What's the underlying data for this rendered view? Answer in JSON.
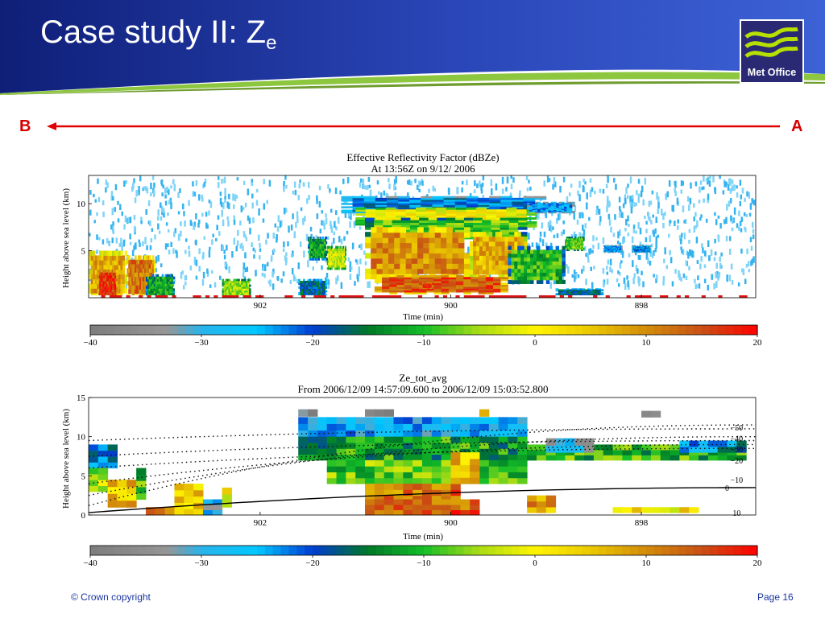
{
  "slide": {
    "title_main": "Case study II: Z",
    "title_sub": "e",
    "logo_text": "Met Office",
    "label_b": "B",
    "label_a": "A",
    "footer_left": "© Crown copyright",
    "footer_right": "Page 16",
    "colors": {
      "header_blue": "#1d2c8c",
      "accent_green": "#8dc63f",
      "arrow_red": "#e00000",
      "footer_text": "#1a35a0"
    }
  },
  "chart_data": [
    {
      "type": "heatmap",
      "title": "Effective Reflectivity Factor (dBZe)",
      "subtitle": "At 13:56Z on 9/12/ 2006",
      "xlabel": "Time (min)",
      "ylabel": "Height above sea level (km)",
      "x_reversed": true,
      "xlim": [
        903.8,
        896.8
      ],
      "ylim": [
        0,
        13
      ],
      "xticks": [
        "902",
        "900",
        "898"
      ],
      "xtick_values": [
        902,
        900,
        898
      ],
      "yticks": [
        "5",
        "10"
      ],
      "ytick_values": [
        5,
        10
      ],
      "colorbar": {
        "range": [
          -40,
          20
        ],
        "ticks": [
          "−40",
          "−30",
          "−20",
          "−10",
          "0",
          "10",
          "20"
        ]
      }
    },
    {
      "type": "heatmap",
      "title": "Ze_tot_avg",
      "subtitle": "From 2006/12/09 14:57:09.600 to 2006/12/09 15:03:52.800",
      "xlabel": "Time (min)",
      "ylabel": "Height above sea level (km)",
      "x_reversed": true,
      "xlim": [
        903.8,
        896.8
      ],
      "ylim": [
        0,
        15
      ],
      "xticks": [
        "902",
        "900",
        "898"
      ],
      "xtick_values": [
        902,
        900,
        898
      ],
      "yticks": [
        "0",
        "5",
        "10",
        "15"
      ],
      "ytick_values": [
        0,
        5,
        10,
        15
      ],
      "contour_labels": [
        "−50",
        "−40",
        "−30",
        "−20",
        "−10",
        "0",
        "10"
      ],
      "colorbar": {
        "range": [
          -40,
          20
        ],
        "ticks": [
          "−40",
          "−30",
          "−20",
          "−10",
          "0",
          "10",
          "20"
        ]
      }
    }
  ]
}
